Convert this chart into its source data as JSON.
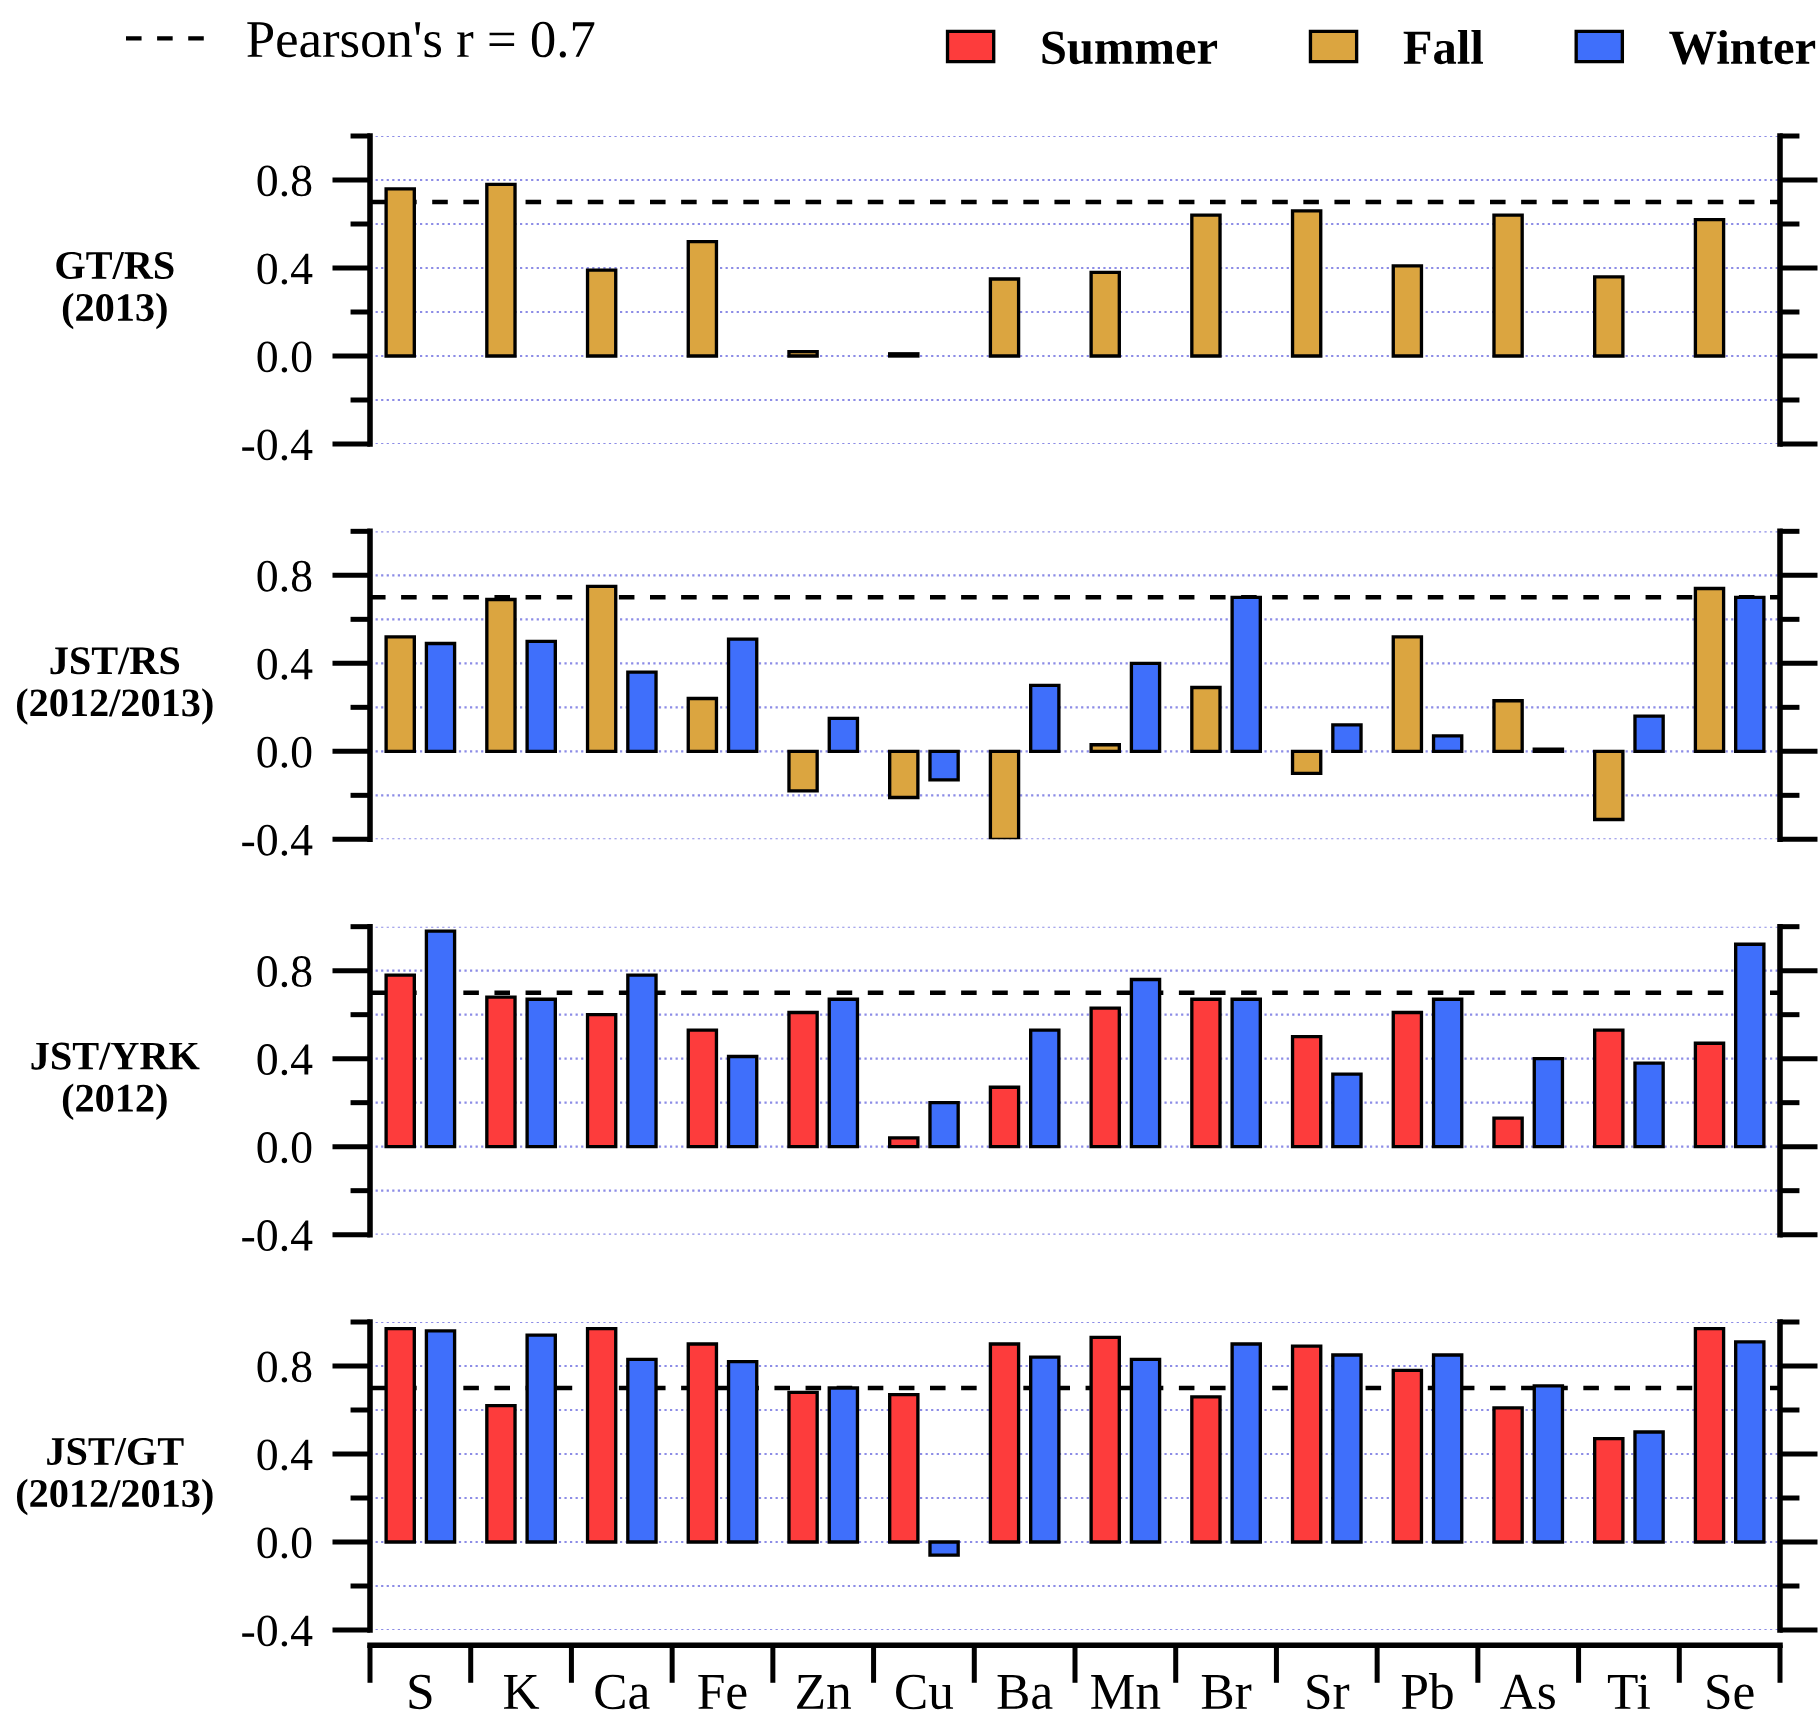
{
  "chart_data": [
    {
      "type": "bar",
      "categories": [
        null,
        null,
        null,
        null,
        null,
        null,
        null,
        null,
        null,
        null,
        null,
        null,
        null,
        null
      ],
      "series": [
        {
          "name": "Fall",
          "color": "#dba540",
          "values": [
            0.76,
            0.78,
            0.39,
            0.52,
            0.02,
            0.01,
            0.35,
            0.38,
            0.64,
            0.66,
            0.41,
            0.64,
            0.36,
            0.62
          ]
        }
      ],
      "ylabel": "GT/RS\n(2013)",
      "ylim": [
        -0.4,
        1.0
      ],
      "yticks": [
        -0.4,
        {
          "value": -0.2,
          "label": null
        },
        {
          "value": 0,
          "label": "0.0"
        },
        {
          "value": 0.2,
          "label": null
        },
        0.4,
        {
          "value": 0.6,
          "label": null
        },
        0.8,
        {
          "value": 1.0,
          "label": null
        }
      ],
      "grid": "y",
      "ref_lines": [
        {
          "axis": "y",
          "value": 0.7,
          "label": "Pearson's r = 0.7",
          "color": "#000000",
          "line_style": "dashed"
        }
      ],
      "tick_labels": "y",
      "legend": "top"
    },
    {
      "type": "bar",
      "categories": [
        null,
        null,
        null,
        null,
        null,
        null,
        null,
        null,
        null,
        null,
        null,
        null,
        null,
        null
      ],
      "series": [
        {
          "name": "Fall",
          "color": "#dba540",
          "values": [
            0.52,
            0.69,
            0.75,
            0.24,
            -0.18,
            -0.21,
            -0.4,
            0.03,
            0.29,
            -0.1,
            0.52,
            0.23,
            -0.31,
            0.74
          ]
        },
        {
          "name": "Winter",
          "color": "#3f6ffb",
          "values": [
            0.49,
            0.5,
            0.36,
            0.51,
            0.15,
            -0.13,
            0.3,
            0.4,
            0.7,
            0.12,
            0.07,
            0.01,
            0.16,
            0.7
          ]
        }
      ],
      "ylabel": "JST/RS\n(2012/2013)",
      "ylim": [
        -0.4,
        1.0
      ],
      "yticks": [
        -0.4,
        {
          "value": -0.2,
          "label": null
        },
        {
          "value": 0,
          "label": "0.0"
        },
        {
          "value": 0.2,
          "label": null
        },
        0.4,
        {
          "value": 0.6,
          "label": null
        },
        0.8,
        {
          "value": 1.0,
          "label": null
        }
      ],
      "grid": "y",
      "ref_lines": [
        {
          "axis": "y",
          "value": 0.7,
          "color": "#000000",
          "line_style": "dashed"
        }
      ],
      "tick_labels": "y"
    },
    {
      "type": "bar",
      "categories": [
        null,
        null,
        null,
        null,
        null,
        null,
        null,
        null,
        null,
        null,
        null,
        null,
        null,
        null
      ],
      "series": [
        {
          "name": "Summer",
          "color": "#fd3c3c",
          "values": [
            0.78,
            0.68,
            0.6,
            0.53,
            0.61,
            0.04,
            0.27,
            0.63,
            0.67,
            0.5,
            0.61,
            0.13,
            0.53,
            0.47
          ]
        },
        {
          "name": "Winter",
          "color": "#3f6ffb",
          "values": [
            0.98,
            0.67,
            0.78,
            0.41,
            0.67,
            0.2,
            0.53,
            0.76,
            0.67,
            0.33,
            0.67,
            0.4,
            0.38,
            0.92
          ]
        }
      ],
      "ylabel": "JST/YRK\n(2012)",
      "ylim": [
        -0.4,
        1.0
      ],
      "yticks": [
        -0.4,
        {
          "value": -0.2,
          "label": null
        },
        {
          "value": 0,
          "label": "0.0"
        },
        {
          "value": 0.2,
          "label": null
        },
        0.4,
        {
          "value": 0.6,
          "label": null
        },
        0.8,
        {
          "value": 1.0,
          "label": null
        }
      ],
      "grid": "y",
      "ref_lines": [
        {
          "axis": "y",
          "value": 0.7,
          "color": "#000000",
          "line_style": "dashed"
        }
      ],
      "tick_labels": "y"
    },
    {
      "type": "bar",
      "categories": [
        "S",
        "K",
        "Ca",
        "Fe",
        "Zn",
        "Cu",
        "Ba",
        "Mn",
        "Br",
        "Sr",
        "Pb",
        "As",
        "Ti",
        "Se"
      ],
      "series": [
        {
          "name": "Summer",
          "color": "#fd3c3c",
          "values": [
            0.97,
            0.62,
            0.97,
            0.9,
            0.68,
            0.67,
            0.9,
            0.93,
            0.66,
            0.89,
            0.78,
            0.61,
            0.47,
            0.97
          ]
        },
        {
          "name": "Winter",
          "color": "#3f6ffb",
          "values": [
            0.96,
            0.94,
            0.83,
            0.82,
            0.7,
            -0.06,
            0.84,
            0.83,
            0.9,
            0.85,
            0.85,
            0.71,
            0.5,
            0.91
          ]
        }
      ],
      "ylabel": "JST/GT\n(2012/2013)",
      "ylim": [
        -0.4,
        1.0
      ],
      "yticks": [
        -0.4,
        {
          "value": -0.2,
          "label": null
        },
        {
          "value": 0,
          "label": "0.0"
        },
        {
          "value": 0.2,
          "label": null
        },
        0.4,
        {
          "value": 0.6,
          "label": null
        },
        0.8,
        {
          "value": 1.0,
          "label": null
        }
      ],
      "grid": "y",
      "ref_lines": [
        {
          "axis": "y",
          "value": 0.7,
          "color": "#000000",
          "line_style": "dashed"
        }
      ]
    }
  ]
}
